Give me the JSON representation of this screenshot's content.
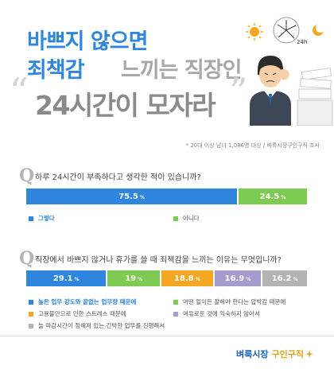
{
  "header": {
    "title_line1": "바쁘지 않으면",
    "title_line2a": "죄책감",
    "title_line2b": "느끼는 직장인",
    "title_line3": "24시간이 모자라",
    "clock_label": "24h",
    "quote_open": "“",
    "quote_close": "”"
  },
  "source_note": "* 20대 이상 남녀 1,086명 대상 / 벼룩시장구인구직 조사",
  "colors": {
    "blue": "#2e86de",
    "green": "#7ecb53",
    "orange": "#f5a623",
    "purple": "#a59bcf",
    "gray": "#b3b3b3",
    "title_blue": "#2e86de",
    "title_gray": "#a7a7a7"
  },
  "question1": {
    "icon": "Q",
    "text": "하루 24시간이 부족하다고 생각한 적이 있습니까?"
  },
  "question2": {
    "icon": "Q",
    "text": "직장에서 바쁘지 않거나 휴가를 쓸 때 죄책감을 느끼는 이유는 무엇입니까?"
  },
  "chart_data": [
    {
      "type": "bar",
      "orientation": "horizontal-stacked",
      "title": "하루 24시간이 부족하다고 생각한 적이 있습니까?",
      "unit": "%",
      "series": [
        {
          "name": "그렇다",
          "value": 75.5,
          "label": "75.5",
          "color": "#2e86de"
        },
        {
          "name": "아니다",
          "value": 24.5,
          "label": "24.5",
          "color": "#7ecb53"
        }
      ]
    },
    {
      "type": "bar",
      "orientation": "horizontal-stacked",
      "title": "직장에서 바쁘지 않거나 휴가를 쓸 때 죄책감을 느끼는 이유는 무엇입니까?",
      "unit": "%",
      "series": [
        {
          "name": "높은 업무 강도와 끝없는 업무량 때문에",
          "value": 29.1,
          "label": "29.1",
          "color": "#2e86de"
        },
        {
          "name": "어떤 일이든 잘해야 한다는 압박감 때문에",
          "value": 19,
          "label": "19",
          "color": "#7ecb53"
        },
        {
          "name": "고용불안으로 인한 스트레스 때문에",
          "value": 18.8,
          "label": "18.8",
          "color": "#f5a623"
        },
        {
          "name": "여유로운 것에 익숙하지 않아서",
          "value": 16.9,
          "label": "16.9",
          "color": "#a59bcf"
        },
        {
          "name": "늘 마감시간이 정해져 있는 긴박한 업무를 진행해서",
          "value": 16.2,
          "label": "16.2",
          "color": "#b3b3b3"
        }
      ]
    }
  ],
  "footer": {
    "logo_main": "벼룩시장",
    "logo_sub": "구인구직"
  }
}
